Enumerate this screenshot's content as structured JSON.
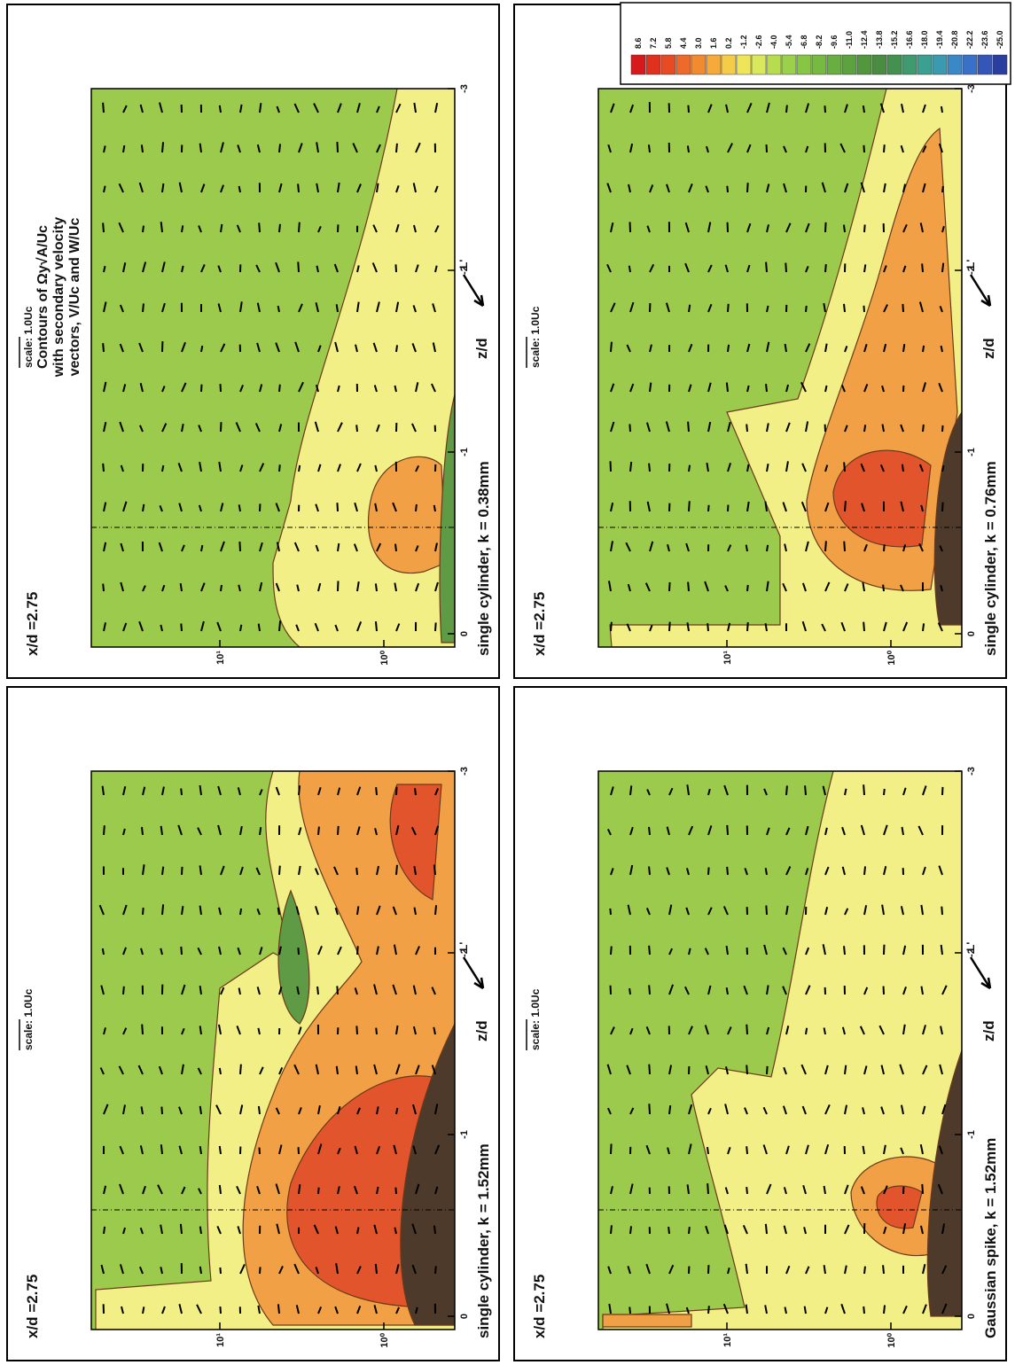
{
  "annotation": {
    "lines": [
      "Contours of Ωy√A/Uc",
      "with secondary velocity",
      "vectors, V/Uc and W/Uc"
    ]
  },
  "legend": {
    "labels": [
      "8.6",
      "7.2",
      "5.8",
      "4.4",
      "3.0",
      "1.6",
      "0.2",
      "-1.2",
      "-2.6",
      "-4.0",
      "-5.4",
      "-6.8",
      "-8.2",
      "-9.6",
      "-11.0",
      "-12.4",
      "-13.8",
      "-15.2",
      "-16.6",
      "-18.0",
      "-19.4",
      "-20.8",
      "-22.2",
      "-23.6",
      "-25.0"
    ],
    "colors": [
      "#d7191c",
      "#e0301e",
      "#e84a22",
      "#ee6a2a",
      "#f28a30",
      "#f6aa3a",
      "#f4cc48",
      "#eee658",
      "#d8e85a",
      "#b8dc50",
      "#9ad04a",
      "#86c644",
      "#76ba42",
      "#68ae40",
      "#5ca23e",
      "#52963e",
      "#4a8c42",
      "#449050",
      "#3f9a70",
      "#3aa090",
      "#3a9ab0",
      "#3a88c8",
      "#3a70c8",
      "#3456b8",
      "#2a3ea0"
    ]
  },
  "panels": [
    {
      "station": "x/d =2.75",
      "scale": "scale: 1.0Uc",
      "caption": "single cylinder, k = 0.38mm",
      "x_label": "z/d",
      "axis_symbol": "L'",
      "x_ticks": [
        "0",
        "-1",
        "-2",
        "-3"
      ],
      "y_ticks": [
        "10¹",
        "10⁰"
      ]
    },
    {
      "station": "x/d =2.75",
      "scale": "scale: 1.0Uc",
      "caption": "single cylinder, k = 0.76mm",
      "x_label": "z/d",
      "axis_symbol": "L'",
      "x_ticks": [
        "0",
        "-1",
        "-2",
        "-3"
      ],
      "y_ticks": [
        "10¹",
        "10⁰"
      ]
    },
    {
      "station": "x/d =2.75",
      "scale": "scale: 1.0Uc",
      "caption": "single cylinder, k = 1.52mm",
      "x_label": "z/d",
      "axis_symbol": "L'",
      "x_ticks": [
        "0",
        "-1",
        "-2",
        "-3"
      ],
      "y_ticks": [
        "10¹",
        "10⁰"
      ]
    },
    {
      "station": "x/d =2.75",
      "scale": "scale: 1.0Uc",
      "caption": "Gaussian spike, k = 1.52mm",
      "x_label": "z/d",
      "axis_symbol": "L'",
      "x_ticks": [
        "0",
        "-1",
        "-2",
        "-3"
      ],
      "y_ticks": [
        "10¹",
        "10⁰"
      ]
    }
  ]
}
